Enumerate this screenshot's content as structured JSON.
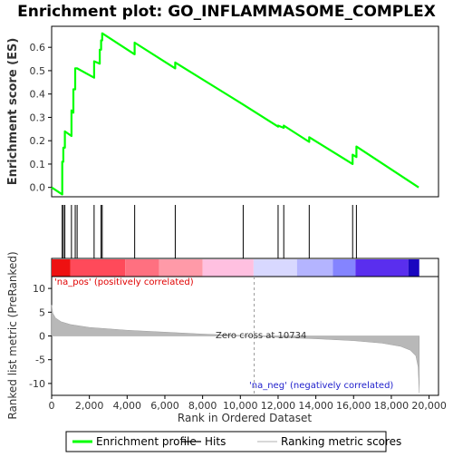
{
  "chart_data": {
    "type": "line",
    "title": "Enrichment plot: GO_INFLAMMASOME_COMPLEX",
    "top_panel": {
      "ylabel": "Enrichment score (ES)",
      "ylim": [
        -0.04,
        0.69
      ],
      "yticks": [
        "0.0",
        "0.1",
        "0.2",
        "0.3",
        "0.4",
        "0.5",
        "0.6"
      ],
      "ytick_values": [
        0.0,
        0.1,
        0.2,
        0.3,
        0.4,
        0.5,
        0.6
      ],
      "series": [
        {
          "name": "Enrichment profile",
          "color": "#00ff00",
          "x": [
            0,
            560,
            560,
            620,
            620,
            700,
            700,
            1050,
            1050,
            1150,
            1150,
            1250,
            1250,
            1350,
            1350,
            2250,
            2250,
            2550,
            2550,
            2620,
            2620,
            2680,
            2680,
            4400,
            4400,
            6550,
            6550,
            10150,
            12000,
            12000,
            12300,
            12300,
            13650,
            13650,
            15950,
            15950,
            16150,
            16150,
            19450
          ],
          "y": [
            0.0,
            -0.03,
            0.11,
            0.11,
            0.17,
            0.17,
            0.24,
            0.22,
            0.33,
            0.32,
            0.42,
            0.42,
            0.51,
            0.51,
            0.51,
            0.47,
            0.54,
            0.53,
            0.59,
            0.59,
            0.63,
            0.63,
            0.66,
            0.57,
            0.62,
            0.51,
            0.535,
            0.355,
            0.26,
            0.265,
            0.255,
            0.265,
            0.195,
            0.215,
            0.1,
            0.14,
            0.13,
            0.175,
            0.0
          ]
        }
      ],
      "hits_positions": [
        560,
        620,
        700,
        1050,
        1250,
        1350,
        2250,
        2620,
        2680,
        4400,
        6550,
        10150,
        12000,
        12300,
        13650,
        15950,
        16150
      ]
    },
    "bottom_panel": {
      "ylabel": "Ranked list metric (PreRanked)",
      "ylim": [
        -12.5,
        12.5
      ],
      "yticks": [
        "10",
        "5",
        "0",
        "-5",
        "-10"
      ],
      "ytick_values": [
        10,
        5,
        0,
        -5,
        -10
      ],
      "metric_x": [
        0,
        60,
        200,
        500,
        1000,
        2000,
        4000,
        6000,
        8000,
        10734,
        12000,
        14000,
        16000,
        17500,
        18500,
        19000,
        19300,
        19420,
        19480
      ],
      "metric_y": [
        6.5,
        4.8,
        3.8,
        3.0,
        2.4,
        1.8,
        1.2,
        0.8,
        0.4,
        0.0,
        -0.3,
        -0.6,
        -1.0,
        -1.5,
        -2.2,
        -3.0,
        -4.2,
        -6.5,
        -12.0
      ],
      "zero_cross_label": "Zero cross at 10734",
      "zero_cross_x": 10734,
      "pos_label": "'na_pos' (positively correlated)",
      "neg_label": "'na_neg' (negatively correlated)"
    },
    "xlabel": "Rank in Ordered Dataset",
    "xlim": [
      0,
      20500
    ],
    "xticks": [
      "0",
      "2,000",
      "4,000",
      "6,000",
      "8,000",
      "10,000",
      "12,000",
      "14,000",
      "16,000",
      "18,000",
      "20,000"
    ],
    "xtick_values": [
      0,
      2000,
      4000,
      6000,
      8000,
      10000,
      12000,
      14000,
      16000,
      18000,
      20000
    ],
    "color_bar": {
      "x_end": 19480,
      "segments": [
        {
          "end": 1000,
          "color": "#ee1111"
        },
        {
          "end": 3900,
          "color": "#ff4a5a"
        },
        {
          "end": 5700,
          "color": "#ff7080"
        },
        {
          "end": 8000,
          "color": "#ff9aa8"
        },
        {
          "end": 10700,
          "color": "#ffc0e0"
        },
        {
          "end": 13000,
          "color": "#d8d8ff"
        },
        {
          "end": 14900,
          "color": "#b4b4ff"
        },
        {
          "end": 16100,
          "color": "#8484ff"
        },
        {
          "end": 18900,
          "color": "#5a2eee"
        },
        {
          "end": 19480,
          "color": "#1a06c0"
        }
      ]
    },
    "legend": {
      "placement": "bottom",
      "items": [
        {
          "label": "Enrichment profile",
          "color": "#00ff00",
          "kind": "line-thick"
        },
        {
          "label": "Hits",
          "color": "#000000",
          "kind": "line-thin"
        },
        {
          "label": "Ranking metric scores",
          "color": "#c0c0c0",
          "kind": "line-thin"
        }
      ]
    },
    "grid": false
  }
}
